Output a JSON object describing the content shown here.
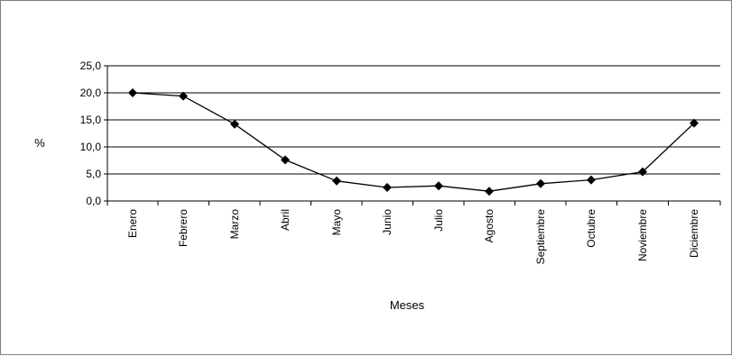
{
  "chart_data": {
    "type": "line",
    "title": "",
    "xlabel": "Meses",
    "ylabel": "%",
    "categories": [
      "Enero",
      "Febrero",
      "Marzo",
      "Abril",
      "Mayo",
      "Junio",
      "Julio",
      "Agosto",
      "Septiembre",
      "Octubre",
      "Noviembre",
      "Diciembre"
    ],
    "values": [
      20.0,
      19.4,
      14.2,
      7.6,
      3.7,
      2.5,
      2.8,
      1.8,
      3.2,
      3.9,
      5.4,
      14.4
    ],
    "ylim": [
      0,
      25
    ],
    "yticks": [
      "0,0",
      "5,0",
      "10,0",
      "15,0",
      "20,0",
      "25,0"
    ],
    "grid": true,
    "legend": "none",
    "line_color": "#000000",
    "marker": "diamond"
  }
}
